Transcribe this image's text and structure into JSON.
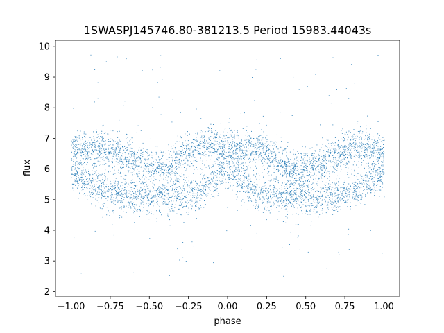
{
  "chart_data": {
    "type": "scatter",
    "title": "1SWASPJ145746.80-381213.5 Period 15983.44043s",
    "xlabel": "phase",
    "ylabel": "flux",
    "xlim": [
      -1.1,
      1.1
    ],
    "ylim": [
      1.85,
      10.2
    ],
    "xticks": [
      -1.0,
      -0.75,
      -0.5,
      -0.25,
      0.0,
      0.25,
      0.5,
      0.75,
      1.0
    ],
    "xtick_labels": [
      "−1.00",
      "−0.75",
      "−0.50",
      "−0.25",
      "0.00",
      "0.25",
      "0.50",
      "0.75",
      "1.00"
    ],
    "yticks": [
      2,
      3,
      4,
      5,
      6,
      7,
      8,
      9,
      10
    ],
    "ytick_labels": [
      "2",
      "3",
      "4",
      "5",
      "6",
      "7",
      "8",
      "9",
      "10"
    ],
    "grid": false,
    "legend": "none",
    "point_color": "#1f77b4",
    "phase_range": [
      -1.0,
      1.0
    ],
    "curve": {
      "description_values": "two-level light curve; points cluster near flux 6.7 and 5.1",
      "high_level": 6.7,
      "low_level": 5.1,
      "profile": [
        {
          "phase": -1.0,
          "high": 6.65,
          "low": 5.9
        },
        {
          "phase": -0.8,
          "high": 6.75,
          "low": 5.25
        },
        {
          "phase": -0.6,
          "high": 6.3,
          "low": 5.1
        },
        {
          "phase": -0.4,
          "high": 6.0,
          "low": 5.1
        },
        {
          "phase": -0.2,
          "high": 6.8,
          "low": 5.15
        },
        {
          "phase": 0.0,
          "high": 6.7,
          "low": 6.0
        },
        {
          "phase": 0.2,
          "high": 6.7,
          "low": 5.2
        },
        {
          "phase": 0.4,
          "high": 6.0,
          "low": 5.1
        },
        {
          "phase": 0.6,
          "high": 6.2,
          "low": 5.1
        },
        {
          "phase": 0.8,
          "high": 6.8,
          "low": 5.2
        },
        {
          "phase": 1.0,
          "high": 6.65,
          "low": 5.9
        }
      ]
    }
  }
}
